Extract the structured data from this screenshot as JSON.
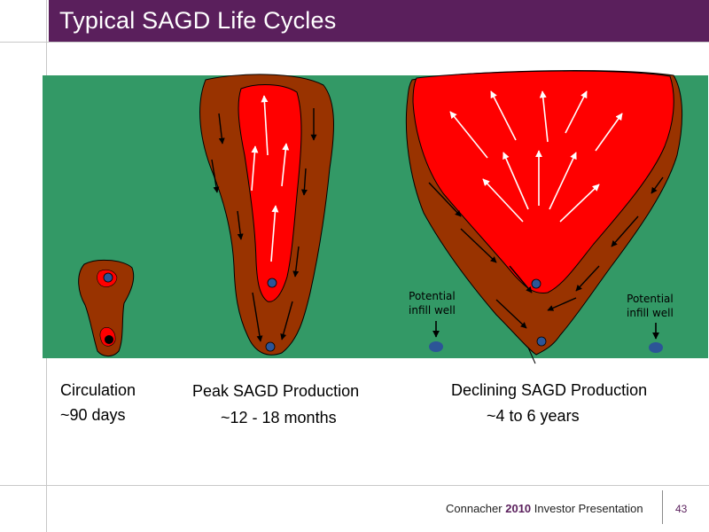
{
  "slide": {
    "title": "Typical SAGD Life Cycles",
    "colors": {
      "title_bar": "#5a1f5c",
      "reservoir": "#339966",
      "chamber_rim": "#993300",
      "steam_chamber": "#ff0000",
      "well": "#2c5597",
      "arrow_in_rock": "#000000",
      "arrow_in_steam": "#ffffff"
    }
  },
  "stages": [
    {
      "name": "Circulation",
      "duration": "~90 days"
    },
    {
      "name": "Peak SAGD Production",
      "duration": "~12 - 18 months"
    },
    {
      "name": "Declining SAGD Production",
      "duration": "~4 to 6 years"
    }
  ],
  "infill_labels": [
    {
      "line1": "Potential",
      "line2": "infill well"
    },
    {
      "line1": "Potential",
      "line2": "infill well"
    }
  ],
  "footer": {
    "company": "Connacher",
    "year": "2010",
    "suffix": "Investor Presentation",
    "page_number": "43"
  }
}
